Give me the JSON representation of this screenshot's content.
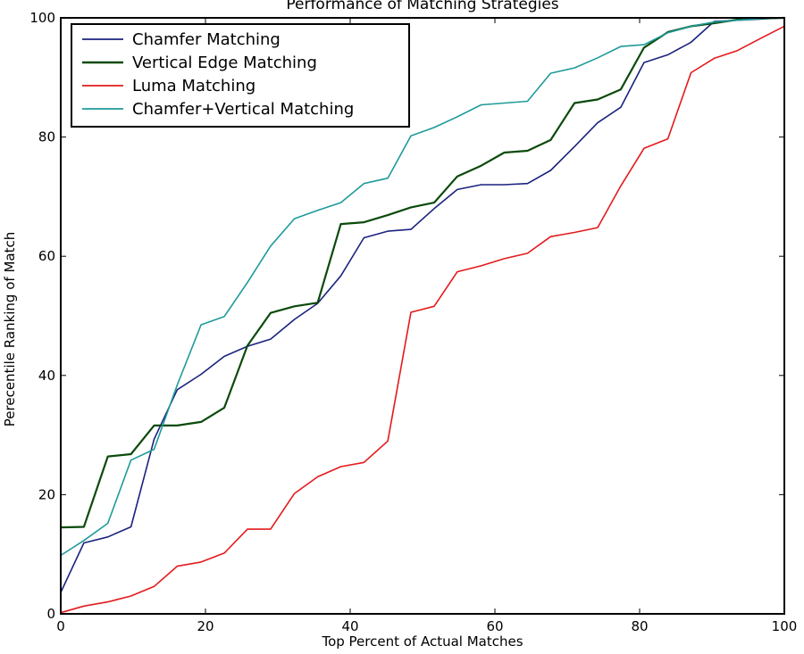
{
  "chart_data": {
    "type": "line",
    "title": "Performance of Matching Strategies",
    "xlabel": "Top Percent of Actual Matches",
    "ylabel": "Perecentile Ranking of Match",
    "xlim": [
      0,
      100
    ],
    "ylim": [
      0,
      100
    ],
    "xticks": [
      0,
      20,
      40,
      60,
      80,
      100
    ],
    "yticks": [
      0,
      20,
      40,
      60,
      80,
      100
    ],
    "grid": false,
    "legend_position": "top-left",
    "series": [
      {
        "name": "Chamfer Matching",
        "color": "#1a237e",
        "points": [
          [
            0,
            3.6
          ],
          [
            3.2,
            11.9
          ],
          [
            6.5,
            12.9
          ],
          [
            9.7,
            14.6
          ],
          [
            12.9,
            29.3
          ],
          [
            16.1,
            37.6
          ],
          [
            19.4,
            40.2
          ],
          [
            22.6,
            43.2
          ],
          [
            25.8,
            44.9
          ],
          [
            29.0,
            46.1
          ],
          [
            32.3,
            49.4
          ],
          [
            35.5,
            52.1
          ],
          [
            38.7,
            56.7
          ],
          [
            41.9,
            63.1
          ],
          [
            45.2,
            64.2
          ],
          [
            48.4,
            64.5
          ],
          [
            51.6,
            68.0
          ],
          [
            54.8,
            71.2
          ],
          [
            58.1,
            72.0
          ],
          [
            61.3,
            72.0
          ],
          [
            64.5,
            72.2
          ],
          [
            67.7,
            74.4
          ],
          [
            71.0,
            78.4
          ],
          [
            74.2,
            82.4
          ],
          [
            77.4,
            85.0
          ],
          [
            80.6,
            92.5
          ],
          [
            83.9,
            93.8
          ],
          [
            87.1,
            95.9
          ],
          [
            90.3,
            99.4
          ],
          [
            93.5,
            99.6
          ],
          [
            96.8,
            99.8
          ],
          [
            100,
            100
          ]
        ]
      },
      {
        "name": "Vertical Edge Matching",
        "color": "#0b4a0b",
        "points": [
          [
            0,
            14.5
          ],
          [
            3.2,
            14.6
          ],
          [
            6.5,
            26.4
          ],
          [
            9.7,
            26.8
          ],
          [
            12.9,
            31.6
          ],
          [
            16.1,
            31.6
          ],
          [
            19.4,
            32.2
          ],
          [
            22.6,
            34.6
          ],
          [
            25.8,
            45.0
          ],
          [
            29.0,
            50.5
          ],
          [
            32.3,
            51.6
          ],
          [
            35.5,
            52.2
          ],
          [
            38.7,
            65.4
          ],
          [
            41.9,
            65.7
          ],
          [
            45.2,
            66.9
          ],
          [
            48.4,
            68.2
          ],
          [
            51.6,
            69.0
          ],
          [
            54.8,
            73.4
          ],
          [
            58.1,
            75.2
          ],
          [
            61.3,
            77.4
          ],
          [
            64.5,
            77.7
          ],
          [
            67.7,
            79.5
          ],
          [
            71.0,
            85.7
          ],
          [
            74.2,
            86.3
          ],
          [
            77.4,
            88.0
          ],
          [
            80.6,
            95.0
          ],
          [
            83.9,
            97.6
          ],
          [
            87.1,
            98.6
          ],
          [
            90.3,
            99.1
          ],
          [
            93.5,
            99.7
          ],
          [
            96.8,
            99.9
          ],
          [
            100,
            100
          ]
        ]
      },
      {
        "name": "Luma Matching",
        "color": "#e31a1c",
        "points": [
          [
            0,
            0.2
          ],
          [
            3.2,
            1.3
          ],
          [
            6.5,
            2.0
          ],
          [
            9.7,
            3.0
          ],
          [
            12.9,
            4.6
          ],
          [
            16.1,
            8.0
          ],
          [
            19.4,
            8.7
          ],
          [
            22.6,
            10.2
          ],
          [
            25.8,
            14.2
          ],
          [
            29.0,
            14.2
          ],
          [
            32.3,
            20.2
          ],
          [
            35.5,
            23.0
          ],
          [
            38.7,
            24.7
          ],
          [
            41.9,
            25.4
          ],
          [
            45.2,
            29.0
          ],
          [
            48.4,
            50.6
          ],
          [
            51.6,
            51.6
          ],
          [
            54.8,
            57.4
          ],
          [
            58.1,
            58.4
          ],
          [
            61.3,
            59.6
          ],
          [
            64.5,
            60.5
          ],
          [
            67.7,
            63.3
          ],
          [
            71.0,
            64.0
          ],
          [
            74.2,
            64.8
          ],
          [
            77.4,
            71.8
          ],
          [
            80.6,
            78.1
          ],
          [
            83.9,
            79.7
          ],
          [
            87.1,
            90.8
          ],
          [
            90.3,
            93.2
          ],
          [
            93.5,
            94.5
          ],
          [
            96.8,
            96.6
          ],
          [
            100,
            98.6
          ]
        ]
      },
      {
        "name": "Chamfer+Vertical Matching",
        "color": "#1f9a9a",
        "points": [
          [
            0,
            9.8
          ],
          [
            3.2,
            12.3
          ],
          [
            6.5,
            15.2
          ],
          [
            9.7,
            25.8
          ],
          [
            12.9,
            27.6
          ],
          [
            16.1,
            38.4
          ],
          [
            19.4,
            48.5
          ],
          [
            22.6,
            49.9
          ],
          [
            25.8,
            55.6
          ],
          [
            29.0,
            61.7
          ],
          [
            32.3,
            66.3
          ],
          [
            35.5,
            67.7
          ],
          [
            38.7,
            69.0
          ],
          [
            41.9,
            72.2
          ],
          [
            45.2,
            73.1
          ],
          [
            48.4,
            80.2
          ],
          [
            51.6,
            81.6
          ],
          [
            54.8,
            83.4
          ],
          [
            58.1,
            85.4
          ],
          [
            61.3,
            85.7
          ],
          [
            64.5,
            86.0
          ],
          [
            67.7,
            90.7
          ],
          [
            71.0,
            91.6
          ],
          [
            74.2,
            93.3
          ],
          [
            77.4,
            95.2
          ],
          [
            80.6,
            95.5
          ],
          [
            83.9,
            97.5
          ],
          [
            87.1,
            98.6
          ],
          [
            90.3,
            99.3
          ],
          [
            93.5,
            99.6
          ],
          [
            96.8,
            99.9
          ],
          [
            100,
            100
          ]
        ]
      }
    ]
  }
}
